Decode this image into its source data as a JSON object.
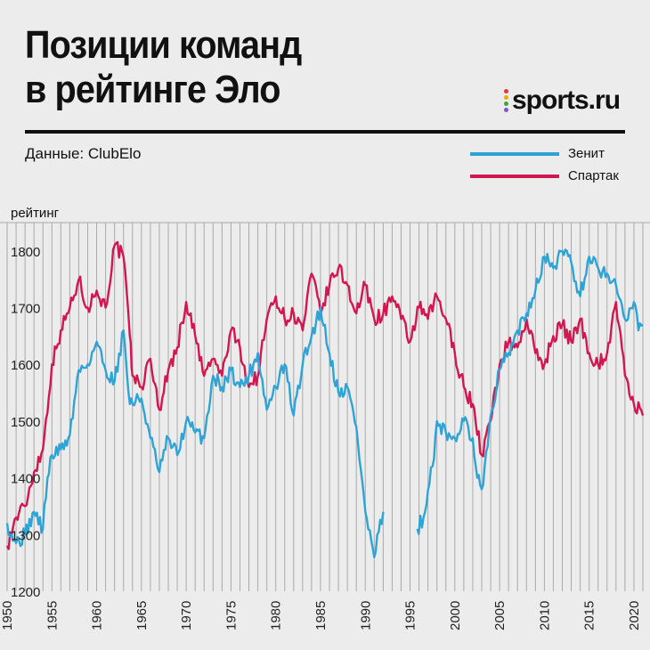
{
  "header": {
    "title_line1": "Позиции команд",
    "title_line2": "в рейтинге Эло",
    "source": "Данные: ClubElo",
    "logo": "sports.ru"
  },
  "colors": {
    "zenit": "#2ea3d6",
    "spartak": "#d2164f",
    "overlap": "#1b2256",
    "logo_dots": [
      "#e53935",
      "#f2a900",
      "#3aaa35",
      "#7e57c2"
    ]
  },
  "chart_data": {
    "type": "line",
    "title": "Позиции команд в рейтинге Эло",
    "ylabel": "рейтинг",
    "xlabel": "",
    "xlim": [
      1950,
      2021
    ],
    "ylim": [
      1200,
      1850
    ],
    "x_ticks": [
      1950,
      1955,
      1960,
      1965,
      1970,
      1975,
      1980,
      1985,
      1990,
      1995,
      2000,
      2005,
      2010,
      2015,
      2020
    ],
    "x_tick_labels": [
      "1950",
      "1955",
      "1960",
      "1965",
      "1970",
      "1975",
      "1980",
      "1985",
      "1990",
      "1995",
      "2000",
      "2005",
      "2010",
      "2015",
      "2020"
    ],
    "y_ticks": [
      1200,
      1300,
      1400,
      1500,
      1600,
      1700,
      1800
    ],
    "y_tick_labels": [
      "1200",
      "1300",
      "1400",
      "1500",
      "1600",
      "1700",
      "1800"
    ],
    "grid": "vertical yearly",
    "legend": "top-right",
    "series": [
      {
        "name": "Зенит",
        "points": [
          [
            1950,
            1320
          ],
          [
            1951,
            1285
          ],
          [
            1952,
            1300
          ],
          [
            1953,
            1340
          ],
          [
            1954,
            1310
          ],
          [
            1954.5,
            1400
          ],
          [
            1955,
            1440
          ],
          [
            1956,
            1450
          ],
          [
            1957,
            1475
          ],
          [
            1958,
            1590
          ],
          [
            1959,
            1600
          ],
          [
            1960,
            1640
          ],
          [
            1961,
            1590
          ],
          [
            1962,
            1570
          ],
          [
            1963,
            1660
          ],
          [
            1963.7,
            1530
          ],
          [
            1965,
            1540
          ],
          [
            1966,
            1470
          ],
          [
            1967,
            1410
          ],
          [
            1968,
            1470
          ],
          [
            1969,
            1440
          ],
          [
            1970,
            1500
          ],
          [
            1971,
            1480
          ],
          [
            1972,
            1470
          ],
          [
            1973,
            1580
          ],
          [
            1974,
            1560
          ],
          [
            1975,
            1590
          ],
          [
            1976,
            1560
          ],
          [
            1977,
            1580
          ],
          [
            1978,
            1620
          ],
          [
            1979,
            1520
          ],
          [
            1980,
            1560
          ],
          [
            1981,
            1600
          ],
          [
            1982,
            1510
          ],
          [
            1983,
            1600
          ],
          [
            1984,
            1650
          ],
          [
            1985,
            1700
          ],
          [
            1986,
            1620
          ],
          [
            1987,
            1550
          ],
          [
            1988,
            1560
          ],
          [
            1989,
            1490
          ],
          [
            1990,
            1340
          ],
          [
            1991,
            1260
          ],
          [
            1992,
            1340
          ]
        ]
      },
      {
        "name": "Зенит",
        "points": [
          [
            1995.8,
            1310
          ],
          [
            1996.5,
            1330
          ],
          [
            1997.5,
            1420
          ],
          [
            1998,
            1500
          ],
          [
            1999,
            1480
          ],
          [
            2000,
            1470
          ],
          [
            2001,
            1500
          ],
          [
            2002,
            1470
          ],
          [
            2002.5,
            1400
          ],
          [
            2003,
            1380
          ],
          [
            2004,
            1510
          ],
          [
            2005,
            1590
          ],
          [
            2006,
            1620
          ],
          [
            2007,
            1660
          ],
          [
            2008,
            1690
          ],
          [
            2008.5,
            1700
          ],
          [
            2009,
            1730
          ],
          [
            2010,
            1790
          ],
          [
            2011,
            1770
          ],
          [
            2012,
            1800
          ],
          [
            2013,
            1780
          ],
          [
            2014,
            1720
          ],
          [
            2015,
            1790
          ],
          [
            2016,
            1770
          ],
          [
            2017,
            1760
          ],
          [
            2018,
            1740
          ],
          [
            2019,
            1680
          ],
          [
            2020,
            1710
          ],
          [
            2020.5,
            1660
          ],
          [
            2021,
            1670
          ]
        ]
      },
      {
        "name": "Спартак",
        "points": [
          [
            1950,
            1280
          ],
          [
            1951,
            1330
          ],
          [
            1952,
            1350
          ],
          [
            1953,
            1410
          ],
          [
            1954,
            1450
          ],
          [
            1955,
            1600
          ],
          [
            1956,
            1660
          ],
          [
            1957,
            1700
          ],
          [
            1958,
            1750
          ],
          [
            1959,
            1700
          ],
          [
            1960,
            1730
          ],
          [
            1961,
            1700
          ],
          [
            1962,
            1810
          ],
          [
            1963,
            1790
          ],
          [
            1963.7,
            1650
          ],
          [
            1964,
            1580
          ],
          [
            1965,
            1560
          ],
          [
            1966,
            1610
          ],
          [
            1967,
            1520
          ],
          [
            1968,
            1590
          ],
          [
            1969,
            1630
          ],
          [
            1970,
            1710
          ],
          [
            1971,
            1650
          ],
          [
            1972,
            1580
          ],
          [
            1973,
            1610
          ],
          [
            1974,
            1580
          ],
          [
            1975,
            1660
          ],
          [
            1976,
            1630
          ],
          [
            1977,
            1560
          ],
          [
            1978,
            1580
          ],
          [
            1979,
            1680
          ],
          [
            1980,
            1720
          ],
          [
            1981,
            1680
          ],
          [
            1982,
            1690
          ],
          [
            1983,
            1660
          ],
          [
            1984,
            1760
          ],
          [
            1985,
            1690
          ],
          [
            1986,
            1740
          ],
          [
            1987,
            1770
          ],
          [
            1988,
            1740
          ],
          [
            1989,
            1690
          ],
          [
            1990,
            1740
          ],
          [
            1991,
            1680
          ],
          [
            1992,
            1690
          ],
          [
            1993,
            1720
          ],
          [
            1994,
            1680
          ],
          [
            1995,
            1640
          ],
          [
            1996,
            1700
          ],
          [
            1997,
            1680
          ],
          [
            1998,
            1720
          ],
          [
            1999,
            1680
          ],
          [
            2000,
            1620
          ],
          [
            2001,
            1560
          ],
          [
            2002,
            1530
          ],
          [
            2003,
            1440
          ],
          [
            2004,
            1500
          ],
          [
            2005,
            1600
          ],
          [
            2006,
            1640
          ],
          [
            2007,
            1630
          ],
          [
            2008,
            1680
          ],
          [
            2009,
            1620
          ],
          [
            2010,
            1600
          ],
          [
            2011,
            1650
          ],
          [
            2012,
            1670
          ],
          [
            2013,
            1640
          ],
          [
            2014,
            1680
          ],
          [
            2015,
            1620
          ],
          [
            2016,
            1600
          ],
          [
            2017,
            1620
          ],
          [
            2018,
            1710
          ],
          [
            2019,
            1580
          ],
          [
            2020,
            1530
          ],
          [
            2021,
            1510
          ]
        ]
      }
    ]
  }
}
